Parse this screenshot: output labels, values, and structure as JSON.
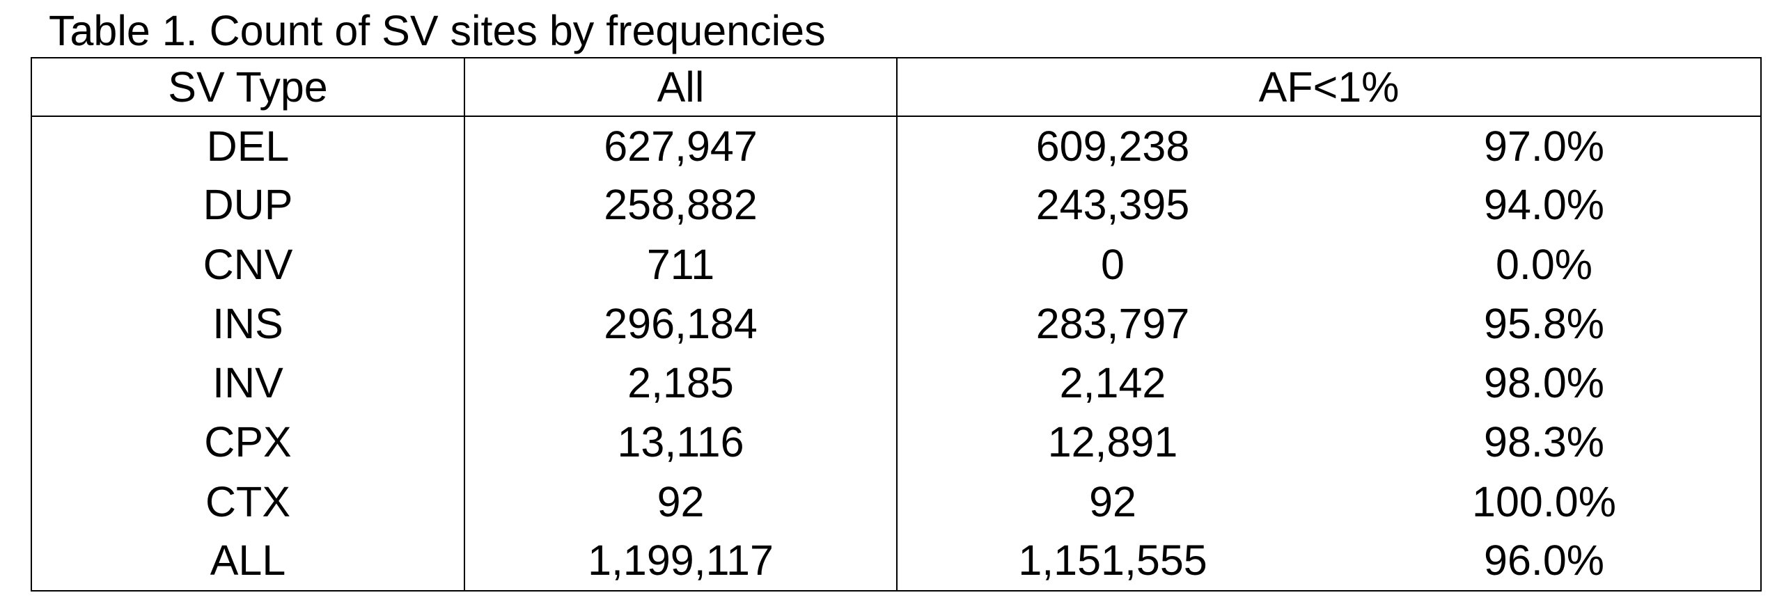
{
  "caption": "Table 1. Count of SV sites by frequencies",
  "headers": {
    "sv_type": "SV Type",
    "all": "All",
    "af": "AF<1%"
  },
  "rows": [
    {
      "type": "DEL",
      "all": "627,947",
      "af_count": "609,238",
      "af_pct": "97.0%"
    },
    {
      "type": "DUP",
      "all": "258,882",
      "af_count": "243,395",
      "af_pct": "94.0%"
    },
    {
      "type": "CNV",
      "all": "711",
      "af_count": "0",
      "af_pct": "0.0%"
    },
    {
      "type": "INS",
      "all": "296,184",
      "af_count": "283,797",
      "af_pct": "95.8%"
    },
    {
      "type": "INV",
      "all": "2,185",
      "af_count": "2,142",
      "af_pct": "98.0%"
    },
    {
      "type": "CPX",
      "all": "13,116",
      "af_count": "12,891",
      "af_pct": "98.3%"
    },
    {
      "type": "CTX",
      "all": "92",
      "af_count": "92",
      "af_pct": "100.0%"
    },
    {
      "type": "ALL",
      "all": "1,199,117",
      "af_count": "1,151,555",
      "af_pct": "96.0%"
    }
  ]
}
